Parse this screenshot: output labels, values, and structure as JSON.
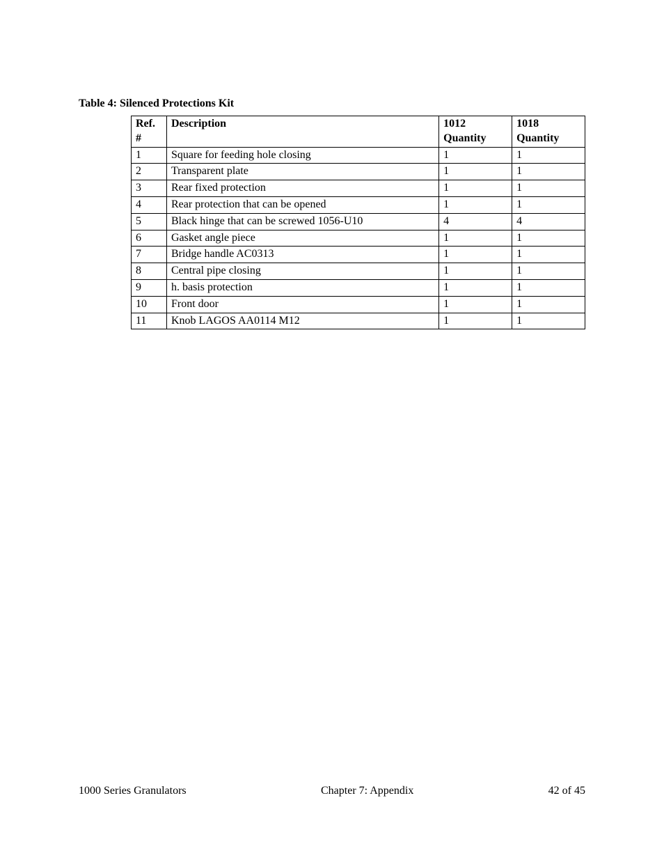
{
  "title": "Table 4: Silenced Protections Kit",
  "table": {
    "headers": {
      "ref": "Ref. #",
      "desc": "Description",
      "q1": "1012 Quantity",
      "q2": "1018 Quantity"
    },
    "rows": [
      {
        "ref": "1",
        "desc": "Square for feeding hole closing",
        "q1": "1",
        "q2": "1"
      },
      {
        "ref": "2",
        "desc": "Transparent plate",
        "q1": "1",
        "q2": "1"
      },
      {
        "ref": "3",
        "desc": "Rear fixed protection",
        "q1": "1",
        "q2": "1"
      },
      {
        "ref": "4",
        "desc": "Rear protection that can be opened",
        "q1": "1",
        "q2": "1"
      },
      {
        "ref": "5",
        "desc": "Black hinge that can be screwed 1056-U10",
        "q1": "4",
        "q2": "4"
      },
      {
        "ref": "6",
        "desc": "Gasket angle piece",
        "q1": "1",
        "q2": "1"
      },
      {
        "ref": "7",
        "desc": "Bridge handle AC0313",
        "q1": "1",
        "q2": "1"
      },
      {
        "ref": "8",
        "desc": "Central pipe closing",
        "q1": "1",
        "q2": "1"
      },
      {
        "ref": "9",
        "desc": "h. basis protection",
        "q1": "1",
        "q2": "1"
      },
      {
        "ref": "10",
        "desc": "Front door",
        "q1": "1",
        "q2": "1"
      },
      {
        "ref": "11",
        "desc": "Knob LAGOS AA0114 M12",
        "q1": "1",
        "q2": "1"
      }
    ]
  },
  "footer": {
    "left": "1000 Series Granulators",
    "center": "Chapter 7: Appendix",
    "right": "42 of 45"
  },
  "colors": {
    "background": "#ffffff",
    "text": "#000000",
    "border": "#000000"
  },
  "fonts": {
    "family": "Times New Roman",
    "body_size_pt": 12,
    "title_weight": "bold",
    "header_weight": "bold"
  }
}
